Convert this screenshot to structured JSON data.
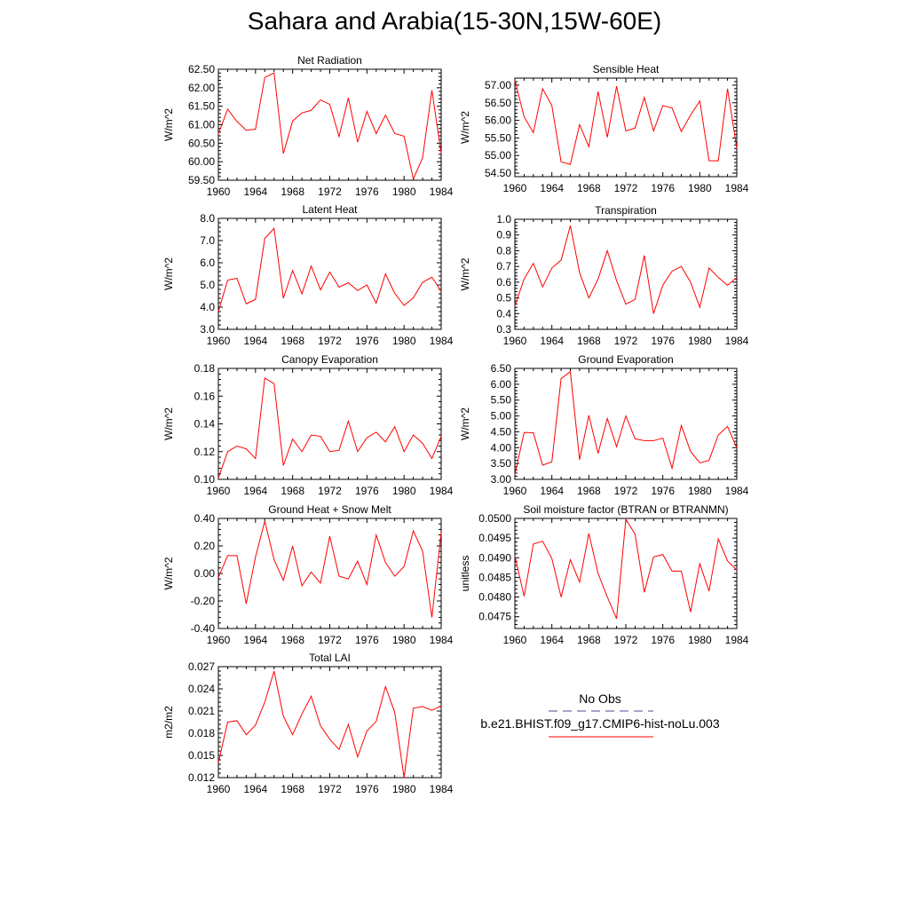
{
  "title": "Sahara and Arabia(15-30N,15W-60E)",
  "colors": {
    "series": "#ff0000",
    "obs": "#4b4b8f",
    "axis": "#000000"
  },
  "legend": {
    "obs_label": "No Obs",
    "model_label": "b.e21.BHIST.f09_g17.CMIP6-hist-noLu.003"
  },
  "chart_data": [
    {
      "type": "line",
      "title": "Net Radiation",
      "ylabel": "W/m^2",
      "xlim": [
        1960,
        1984
      ],
      "ylim": [
        59.5,
        62.5
      ],
      "xticks": [
        1960,
        1964,
        1968,
        1972,
        1976,
        1980,
        1984
      ],
      "yticks": [
        59.5,
        60.0,
        60.5,
        61.0,
        61.5,
        62.0,
        62.5
      ],
      "ytick_labels": [
        "59.50",
        "60.00",
        "60.50",
        "61.00",
        "61.50",
        "62.00",
        "62.50"
      ],
      "x": [
        1960,
        1961,
        1962,
        1963,
        1964,
        1965,
        1966,
        1967,
        1968,
        1969,
        1970,
        1971,
        1972,
        1973,
        1974,
        1975,
        1976,
        1977,
        1978,
        1979,
        1980,
        1981,
        1982,
        1983,
        1984
      ],
      "series": [
        {
          "values": [
            60.75,
            61.42,
            61.09,
            60.85,
            60.88,
            62.28,
            62.4,
            60.22,
            61.1,
            61.32,
            61.39,
            61.67,
            61.55,
            60.68,
            61.73,
            60.53,
            61.36,
            60.76,
            61.26,
            60.76,
            60.69,
            59.53,
            60.11,
            61.93,
            60.22
          ]
        }
      ]
    },
    {
      "type": "line",
      "title": "Sensible Heat",
      "ylabel": "W/m^2",
      "xlim": [
        1960,
        1984
      ],
      "ylim": [
        54.4,
        57.2
      ],
      "xticks": [
        1960,
        1964,
        1968,
        1972,
        1976,
        1980,
        1984
      ],
      "yticks": [
        54.5,
        55.0,
        55.5,
        56.0,
        56.5,
        57.0
      ],
      "ytick_labels": [
        "54.50",
        "55.00",
        "55.50",
        "56.00",
        "56.50",
        "57.00"
      ],
      "x": [
        1960,
        1961,
        1962,
        1963,
        1964,
        1965,
        1966,
        1967,
        1968,
        1969,
        1970,
        1971,
        1972,
        1973,
        1974,
        1975,
        1976,
        1977,
        1978,
        1979,
        1980,
        1981,
        1982,
        1983,
        1984
      ],
      "series": [
        {
          "values": [
            57.15,
            56.1,
            55.65,
            56.9,
            56.42,
            54.82,
            54.75,
            55.88,
            55.25,
            56.82,
            55.52,
            56.97,
            55.7,
            55.78,
            56.65,
            55.7,
            56.42,
            56.35,
            55.68,
            56.15,
            56.55,
            54.85,
            54.85,
            56.9,
            55.2
          ]
        }
      ]
    },
    {
      "type": "line",
      "title": "Latent Heat",
      "ylabel": "W/m^2",
      "xlim": [
        1960,
        1984
      ],
      "ylim": [
        3.0,
        8.0
      ],
      "xticks": [
        1960,
        1964,
        1968,
        1972,
        1976,
        1980,
        1984
      ],
      "yticks": [
        3.0,
        4.0,
        5.0,
        6.0,
        7.0,
        8.0
      ],
      "ytick_labels": [
        "3.0",
        "4.0",
        "5.0",
        "6.0",
        "7.0",
        "8.0"
      ],
      "x": [
        1960,
        1961,
        1962,
        1963,
        1964,
        1965,
        1966,
        1967,
        1968,
        1969,
        1970,
        1971,
        1972,
        1973,
        1974,
        1975,
        1976,
        1977,
        1978,
        1979,
        1980,
        1981,
        1982,
        1983,
        1984
      ],
      "series": [
        {
          "values": [
            3.8,
            5.22,
            5.3,
            4.15,
            4.35,
            7.1,
            7.55,
            4.4,
            5.65,
            4.6,
            5.85,
            4.78,
            5.58,
            4.9,
            5.1,
            4.75,
            5.0,
            4.18,
            5.5,
            4.62,
            4.08,
            4.42,
            5.12,
            5.35,
            4.72
          ]
        }
      ]
    },
    {
      "type": "line",
      "title": "Transpiration",
      "ylabel": "W/m^2",
      "xlim": [
        1960,
        1984
      ],
      "ylim": [
        0.3,
        1.0
      ],
      "xticks": [
        1960,
        1964,
        1968,
        1972,
        1976,
        1980,
        1984
      ],
      "yticks": [
        0.3,
        0.4,
        0.5,
        0.6,
        0.7,
        0.8,
        0.9,
        1.0
      ],
      "ytick_labels": [
        "0.3",
        "0.4",
        "0.5",
        "0.6",
        "0.7",
        "0.8",
        "0.9",
        "1.0"
      ],
      "x": [
        1960,
        1961,
        1962,
        1963,
        1964,
        1965,
        1966,
        1967,
        1968,
        1969,
        1970,
        1971,
        1972,
        1973,
        1974,
        1975,
        1976,
        1977,
        1978,
        1979,
        1980,
        1981,
        1982,
        1983,
        1984
      ],
      "series": [
        {
          "values": [
            0.45,
            0.62,
            0.72,
            0.57,
            0.69,
            0.74,
            0.96,
            0.66,
            0.5,
            0.62,
            0.8,
            0.61,
            0.46,
            0.49,
            0.77,
            0.4,
            0.58,
            0.67,
            0.7,
            0.6,
            0.44,
            0.69,
            0.63,
            0.58,
            0.63
          ]
        }
      ]
    },
    {
      "type": "line",
      "title": "Canopy Evaporation",
      "ylabel": "W/m^2",
      "xlim": [
        1960,
        1984
      ],
      "ylim": [
        0.1,
        0.18
      ],
      "xticks": [
        1960,
        1964,
        1968,
        1972,
        1976,
        1980,
        1984
      ],
      "yticks": [
        0.1,
        0.12,
        0.14,
        0.16,
        0.18
      ],
      "ytick_labels": [
        "0.10",
        "0.12",
        "0.14",
        "0.16",
        "0.18"
      ],
      "x": [
        1960,
        1961,
        1962,
        1963,
        1964,
        1965,
        1966,
        1967,
        1968,
        1969,
        1970,
        1971,
        1972,
        1973,
        1974,
        1975,
        1976,
        1977,
        1978,
        1979,
        1980,
        1981,
        1982,
        1983,
        1984
      ],
      "series": [
        {
          "values": [
            0.101,
            0.12,
            0.124,
            0.122,
            0.115,
            0.173,
            0.169,
            0.11,
            0.129,
            0.12,
            0.132,
            0.131,
            0.12,
            0.121,
            0.142,
            0.12,
            0.13,
            0.134,
            0.127,
            0.138,
            0.12,
            0.132,
            0.126,
            0.115,
            0.131
          ]
        }
      ]
    },
    {
      "type": "line",
      "title": "Ground Evaporation",
      "ylabel": "W/m^2",
      "xlim": [
        1960,
        1984
      ],
      "ylim": [
        3.0,
        6.5
      ],
      "xticks": [
        1960,
        1964,
        1968,
        1972,
        1976,
        1980,
        1984
      ],
      "yticks": [
        3.0,
        3.5,
        4.0,
        4.5,
        5.0,
        5.5,
        6.0,
        6.5
      ],
      "ytick_labels": [
        "3.00",
        "3.50",
        "4.00",
        "4.50",
        "5.00",
        "5.50",
        "6.00",
        "6.50"
      ],
      "x": [
        1960,
        1961,
        1962,
        1963,
        1964,
        1965,
        1966,
        1967,
        1968,
        1969,
        1970,
        1971,
        1972,
        1973,
        1974,
        1975,
        1976,
        1977,
        1978,
        1979,
        1980,
        1981,
        1982,
        1983,
        1984
      ],
      "series": [
        {
          "values": [
            3.15,
            4.48,
            4.47,
            3.45,
            3.55,
            6.18,
            6.4,
            3.62,
            5.02,
            3.82,
            4.92,
            4.03,
            5.0,
            4.28,
            4.22,
            4.22,
            4.3,
            3.35,
            4.7,
            3.88,
            3.52,
            3.6,
            4.4,
            4.67,
            3.99
          ]
        }
      ]
    },
    {
      "type": "line",
      "title": "Ground Heat + Snow Melt",
      "ylabel": "W/m^2",
      "xlim": [
        1960,
        1984
      ],
      "ylim": [
        -0.4,
        0.4
      ],
      "xticks": [
        1960,
        1964,
        1968,
        1972,
        1976,
        1980,
        1984
      ],
      "yticks": [
        -0.4,
        -0.2,
        0.0,
        0.2,
        0.4
      ],
      "ytick_labels": [
        "-0.40",
        "-0.20",
        "0.00",
        "0.20",
        "0.40"
      ],
      "x": [
        1960,
        1961,
        1962,
        1963,
        1964,
        1965,
        1966,
        1967,
        1968,
        1969,
        1970,
        1971,
        1972,
        1973,
        1974,
        1975,
        1976,
        1977,
        1978,
        1979,
        1980,
        1981,
        1982,
        1983,
        1984
      ],
      "series": [
        {
          "values": [
            -0.03,
            0.13,
            0.13,
            -0.22,
            0.12,
            0.38,
            0.1,
            -0.05,
            0.2,
            -0.09,
            0.01,
            -0.07,
            0.27,
            -0.02,
            -0.04,
            0.09,
            -0.08,
            0.28,
            0.08,
            -0.02,
            0.05,
            0.31,
            0.16,
            -0.32,
            0.3
          ]
        }
      ]
    },
    {
      "type": "line",
      "title": "Soil moisture factor (BTRAN or BTRANMN)",
      "ylabel": "unitless",
      "xlim": [
        1960,
        1984
      ],
      "ylim": [
        0.0472,
        0.05
      ],
      "xticks": [
        1960,
        1964,
        1968,
        1972,
        1976,
        1980,
        1984
      ],
      "yticks": [
        0.0475,
        0.048,
        0.0485,
        0.049,
        0.0495,
        0.05
      ],
      "ytick_labels": [
        "0.0475",
        "0.0480",
        "0.0485",
        "0.0490",
        "0.0495",
        "0.0500"
      ],
      "x": [
        1960,
        1961,
        1962,
        1963,
        1964,
        1965,
        1966,
        1967,
        1968,
        1969,
        1970,
        1971,
        1972,
        1973,
        1974,
        1975,
        1976,
        1977,
        1978,
        1979,
        1980,
        1981,
        1982,
        1983,
        1984
      ],
      "series": [
        {
          "values": [
            0.04905,
            0.04802,
            0.04935,
            0.04942,
            0.04898,
            0.048,
            0.04895,
            0.04838,
            0.04962,
            0.0486,
            0.048,
            0.04745,
            0.04998,
            0.0496,
            0.04812,
            0.04902,
            0.04908,
            0.04866,
            0.04866,
            0.04762,
            0.04885,
            0.04815,
            0.04948,
            0.04892,
            0.04868
          ]
        }
      ]
    },
    {
      "type": "line",
      "title": "Total LAI",
      "ylabel": "m2/m2",
      "xlim": [
        1960,
        1984
      ],
      "ylim": [
        0.012,
        0.027
      ],
      "xticks": [
        1960,
        1964,
        1968,
        1972,
        1976,
        1980,
        1984
      ],
      "yticks": [
        0.012,
        0.015,
        0.018,
        0.021,
        0.024,
        0.027
      ],
      "ytick_labels": [
        "0.012",
        "0.015",
        "0.018",
        "0.021",
        "0.024",
        "0.027"
      ],
      "x": [
        1960,
        1961,
        1962,
        1963,
        1964,
        1965,
        1966,
        1967,
        1968,
        1969,
        1970,
        1971,
        1972,
        1973,
        1974,
        1975,
        1976,
        1977,
        1978,
        1979,
        1980,
        1981,
        1982,
        1983,
        1984
      ],
      "series": [
        {
          "values": [
            0.014,
            0.0195,
            0.0197,
            0.0178,
            0.0191,
            0.0222,
            0.0264,
            0.0203,
            0.0178,
            0.0206,
            0.023,
            0.019,
            0.0172,
            0.0158,
            0.0192,
            0.0148,
            0.0183,
            0.0196,
            0.0243,
            0.0208,
            0.012,
            0.0214,
            0.0216,
            0.0211,
            0.0217
          ]
        }
      ]
    }
  ]
}
